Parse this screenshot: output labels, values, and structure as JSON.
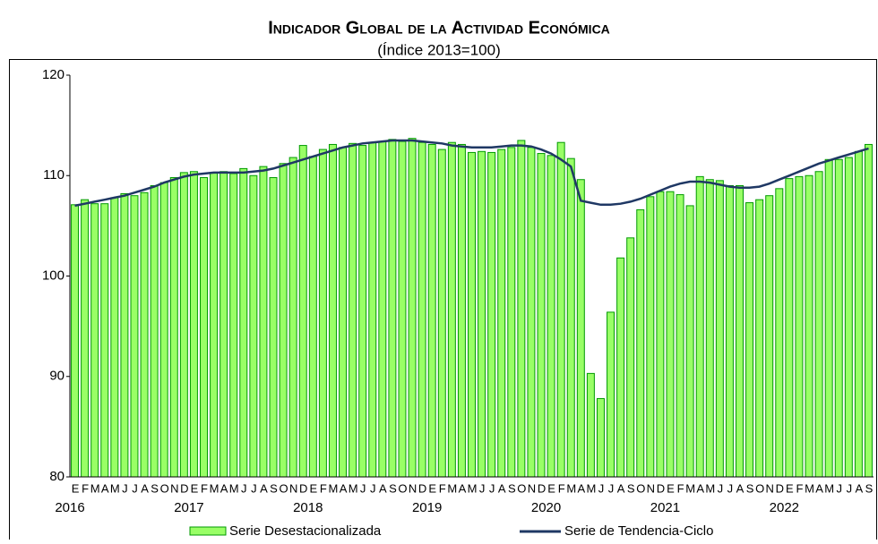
{
  "chart_data": {
    "type": "bar",
    "title": "Indicador Global de la Actividad Económica",
    "subtitle": "(Índice 2013=100)",
    "categories": [
      "E",
      "F",
      "M",
      "A",
      "M",
      "J",
      "J",
      "A",
      "S",
      "O",
      "N",
      "D",
      "E",
      "F",
      "M",
      "A",
      "M",
      "J",
      "J",
      "A",
      "S",
      "O",
      "N",
      "D",
      "E",
      "F",
      "M",
      "A",
      "M",
      "J",
      "J",
      "A",
      "S",
      "O",
      "N",
      "D",
      "E",
      "F",
      "M",
      "A",
      "M",
      "J",
      "J",
      "A",
      "S",
      "O",
      "N",
      "D",
      "E",
      "F",
      "M",
      "A",
      "M",
      "J",
      "J",
      "A",
      "S",
      "O",
      "N",
      "D",
      "E",
      "F",
      "M",
      "A",
      "M",
      "J",
      "J",
      "A",
      "S",
      "O",
      "N",
      "D",
      "E",
      "F",
      "M",
      "A",
      "M",
      "J",
      "J",
      "A",
      "S"
    ],
    "years": [
      "2016",
      "2017",
      "2018",
      "2019",
      "2020",
      "2021",
      "2022"
    ],
    "series": [
      {
        "name": "Serie Desestacionalizada",
        "type": "bar",
        "color": "#99ff66",
        "edge_color": "#009900",
        "values": [
          107.1,
          107.6,
          107.2,
          107.2,
          107.8,
          108.2,
          108.0,
          108.3,
          109.0,
          109.3,
          109.8,
          110.3,
          110.4,
          109.8,
          110.3,
          110.4,
          110.2,
          110.7,
          110.0,
          110.9,
          109.8,
          111.2,
          111.8,
          113.0,
          111.9,
          112.6,
          113.1,
          112.8,
          113.2,
          113.0,
          113.3,
          113.4,
          113.6,
          113.4,
          113.7,
          113.3,
          113.1,
          112.6,
          113.3,
          113.1,
          112.3,
          112.4,
          112.3,
          112.6,
          112.8,
          113.5,
          112.8,
          112.2,
          112.0,
          113.3,
          111.7,
          109.6,
          90.3,
          87.8,
          96.4,
          101.8,
          103.8,
          106.6,
          107.9,
          108.4,
          108.4,
          108.1,
          107.0,
          109.9,
          109.6,
          109.5,
          109.0,
          109.0,
          107.3,
          107.6,
          108.0,
          108.7,
          109.7,
          109.9,
          110.0,
          110.4,
          111.6,
          111.6,
          111.8,
          112.4,
          113.1
        ]
      },
      {
        "name": "Serie de Tendencia-Ciclo",
        "type": "line",
        "color": "#1f3864",
        "values": [
          107.0,
          107.2,
          107.4,
          107.6,
          107.8,
          108.0,
          108.3,
          108.6,
          108.9,
          109.3,
          109.6,
          109.9,
          110.1,
          110.2,
          110.3,
          110.3,
          110.3,
          110.3,
          110.4,
          110.5,
          110.7,
          111.0,
          111.3,
          111.6,
          111.9,
          112.2,
          112.5,
          112.8,
          113.0,
          113.2,
          113.3,
          113.4,
          113.5,
          113.5,
          113.5,
          113.4,
          113.3,
          113.2,
          113.0,
          112.9,
          112.8,
          112.8,
          112.8,
          112.9,
          113.0,
          113.0,
          112.9,
          112.6,
          112.2,
          111.6,
          110.9,
          107.5,
          107.3,
          107.1,
          107.1,
          107.2,
          107.4,
          107.7,
          108.1,
          108.5,
          108.9,
          109.2,
          109.4,
          109.4,
          109.3,
          109.1,
          108.9,
          108.8,
          108.8,
          108.9,
          109.2,
          109.6,
          110.0,
          110.4,
          110.8,
          111.2,
          111.5,
          111.8,
          112.1,
          112.4,
          112.7
        ]
      }
    ],
    "ylim": [
      80,
      120
    ],
    "yticks": [
      80,
      90,
      100,
      110,
      120
    ],
    "grid": false,
    "legend": "bottom"
  }
}
